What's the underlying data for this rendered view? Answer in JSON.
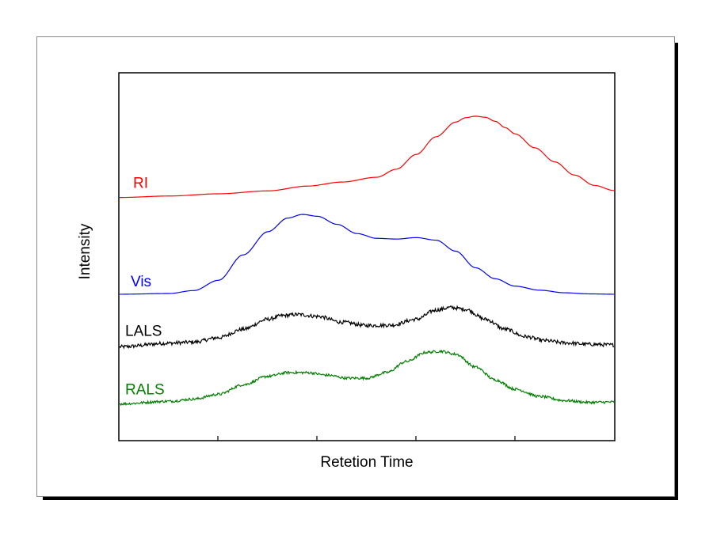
{
  "chart_data": {
    "type": "line",
    "title": "",
    "xlabel": "Retetion Time",
    "ylabel": "Intensity",
    "xlim": [
      0,
      1
    ],
    "ylim": [
      0,
      1
    ],
    "x_ticks_shown": false,
    "y_ticks_shown": false,
    "grid": false,
    "legend": "inline-left",
    "series": [
      {
        "name": "RI",
        "color": "#ff0000",
        "noise": 0,
        "x": [
          0,
          0.1,
          0.2,
          0.3,
          0.38,
          0.45,
          0.52,
          0.56,
          0.6,
          0.64,
          0.68,
          0.7,
          0.72,
          0.74,
          0.76,
          0.78,
          0.8,
          0.84,
          0.88,
          0.92,
          0.96,
          1.0
        ],
        "y": [
          0.661,
          0.665,
          0.671,
          0.679,
          0.692,
          0.703,
          0.716,
          0.738,
          0.778,
          0.826,
          0.866,
          0.878,
          0.882,
          0.879,
          0.868,
          0.851,
          0.834,
          0.796,
          0.758,
          0.722,
          0.694,
          0.68
        ]
      },
      {
        "name": "Vis",
        "color": "#0000ff",
        "noise": 0,
        "x": [
          0,
          0.1,
          0.15,
          0.2,
          0.25,
          0.3,
          0.34,
          0.37,
          0.4,
          0.44,
          0.48,
          0.52,
          0.56,
          0.6,
          0.64,
          0.68,
          0.72,
          0.76,
          0.8,
          0.85,
          0.9,
          0.95,
          1.0
        ],
        "y": [
          0.398,
          0.4,
          0.408,
          0.436,
          0.505,
          0.568,
          0.605,
          0.615,
          0.61,
          0.588,
          0.563,
          0.55,
          0.548,
          0.552,
          0.545,
          0.515,
          0.47,
          0.44,
          0.42,
          0.409,
          0.402,
          0.399,
          0.398
        ]
      },
      {
        "name": "LALS",
        "color": "#000000",
        "noise": 0.005,
        "x": [
          0,
          0.1,
          0.15,
          0.2,
          0.25,
          0.3,
          0.33,
          0.36,
          0.4,
          0.45,
          0.5,
          0.55,
          0.6,
          0.64,
          0.67,
          0.7,
          0.74,
          0.78,
          0.82,
          0.86,
          0.9,
          0.95,
          1.0
        ],
        "y": [
          0.255,
          0.265,
          0.268,
          0.28,
          0.303,
          0.33,
          0.34,
          0.343,
          0.338,
          0.322,
          0.313,
          0.314,
          0.33,
          0.355,
          0.362,
          0.357,
          0.33,
          0.303,
          0.283,
          0.272,
          0.266,
          0.262,
          0.26
        ]
      },
      {
        "name": "RALS",
        "color": "#008000",
        "noise": 0.0035,
        "x": [
          0,
          0.1,
          0.15,
          0.2,
          0.25,
          0.3,
          0.34,
          0.38,
          0.42,
          0.46,
          0.5,
          0.54,
          0.58,
          0.62,
          0.65,
          0.68,
          0.72,
          0.76,
          0.8,
          0.85,
          0.9,
          0.95,
          1.0
        ],
        "y": [
          0.1,
          0.107,
          0.113,
          0.126,
          0.152,
          0.175,
          0.185,
          0.185,
          0.178,
          0.17,
          0.17,
          0.185,
          0.215,
          0.24,
          0.243,
          0.235,
          0.2,
          0.165,
          0.14,
          0.12,
          0.109,
          0.104,
          0.105
        ]
      }
    ]
  }
}
